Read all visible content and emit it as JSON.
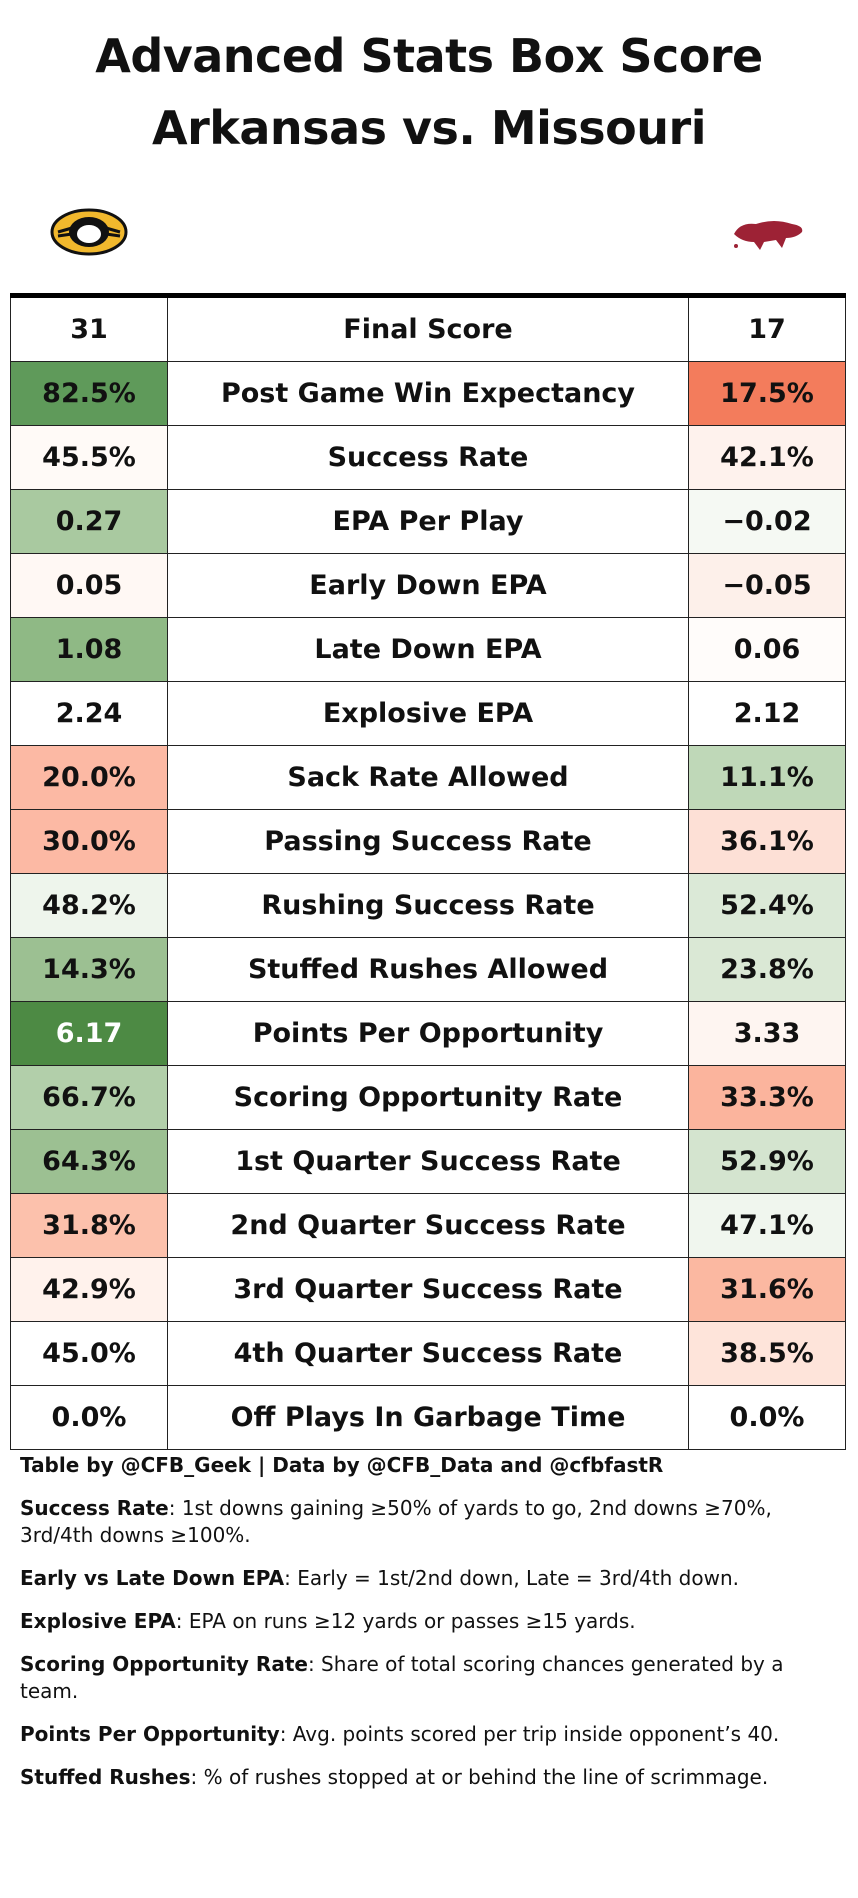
{
  "header": {
    "title_line1": "Advanced Stats Box Score",
    "title_line2": "Arkansas vs. Missouri"
  },
  "table": {
    "rows": [
      {
        "left": "31",
        "label": "Final Score",
        "right": "17",
        "left_color": "#ffffff",
        "right_color": "#ffffff"
      },
      {
        "left": "82.5%",
        "label": "Post Game Win Expectancy",
        "right": "17.5%",
        "left_color": "#5f9a5a",
        "right_color": "#f37c5c"
      },
      {
        "left": "45.5%",
        "label": "Success Rate",
        "right": "42.1%",
        "left_color": "#fffaf7",
        "right_color": "#fef2ed"
      },
      {
        "left": "0.27",
        "label": "EPA Per Play",
        "right": "−0.02",
        "left_color": "#a9c9a0",
        "right_color": "#f5f9f3"
      },
      {
        "left": "0.05",
        "label": "Early Down EPA",
        "right": "−0.05",
        "left_color": "#fff8f4",
        "right_color": "#fdf0ea"
      },
      {
        "left": "1.08",
        "label": "Late Down EPA",
        "right": "0.06",
        "left_color": "#8fb985",
        "right_color": "#fffcfa"
      },
      {
        "left": "2.24",
        "label": "Explosive EPA",
        "right": "2.12",
        "left_color": "#ffffff",
        "right_color": "#ffffff"
      },
      {
        "left": "20.0%",
        "label": "Sack Rate Allowed",
        "right": "11.1%",
        "left_color": "#fcb9a4",
        "right_color": "#bfd8b8"
      },
      {
        "left": "30.0%",
        "label": "Passing Success Rate",
        "right": "36.1%",
        "left_color": "#fcb9a4",
        "right_color": "#fde0d6"
      },
      {
        "left": "48.2%",
        "label": "Rushing Success Rate",
        "right": "52.4%",
        "left_color": "#eef5ec",
        "right_color": "#dbe9d7"
      },
      {
        "left": "14.3%",
        "label": "Stuffed Rushes Allowed",
        "right": "23.8%",
        "left_color": "#9cc092",
        "right_color": "#dae8d5"
      },
      {
        "left": "6.17",
        "label": "Points Per Opportunity",
        "right": "3.33",
        "left_color": "#4d8a44",
        "right_color": "#fef5f1"
      },
      {
        "left": "66.7%",
        "label": "Scoring Opportunity Rate",
        "right": "33.3%",
        "left_color": "#b2cfaa",
        "right_color": "#fbb49d"
      },
      {
        "left": "64.3%",
        "label": "1st Quarter Success Rate",
        "right": "52.9%",
        "left_color": "#9cc092",
        "right_color": "#d4e4cf"
      },
      {
        "left": "31.8%",
        "label": "2nd Quarter Success Rate",
        "right": "47.1%",
        "left_color": "#fcc1ac",
        "right_color": "#f0f6ee"
      },
      {
        "left": "42.9%",
        "label": "3rd Quarter Success Rate",
        "right": "31.6%",
        "left_color": "#fff2ec",
        "right_color": "#fbb8a1"
      },
      {
        "left": "45.0%",
        "label": "4th Quarter Success Rate",
        "right": "38.5%",
        "left_color": "#ffffff",
        "right_color": "#fee4da"
      },
      {
        "left": "0.0%",
        "label": "Off Plays In Garbage Time",
        "right": "0.0%",
        "left_color": "#ffffff",
        "right_color": "#ffffff"
      }
    ]
  },
  "notes": {
    "credit": "Table by @CFB_Geek | Data by @CFB_Data and @cfbfastR",
    "items": [
      {
        "term": "Success Rate",
        "text": ": 1st downs gaining ≥50% of yards to go, 2nd downs ≥70%, 3rd/4th downs ≥100%."
      },
      {
        "term": "Early vs Late Down EPA",
        "text": ": Early = 1st/2nd down, Late = 3rd/4th down."
      },
      {
        "term": "Explosive EPA",
        "text": ": EPA on runs ≥12 yards or passes ≥15 yards."
      },
      {
        "term": "Scoring Opportunity Rate",
        "text": ": Share of total scoring chances generated by a team."
      },
      {
        "term": "Points Per Opportunity",
        "text": ": Avg. points scored per trip inside opponent’s 40."
      },
      {
        "term": "Stuffed Rushes",
        "text": ": % of rushes stopped at or behind the line of scrimmage."
      }
    ]
  }
}
